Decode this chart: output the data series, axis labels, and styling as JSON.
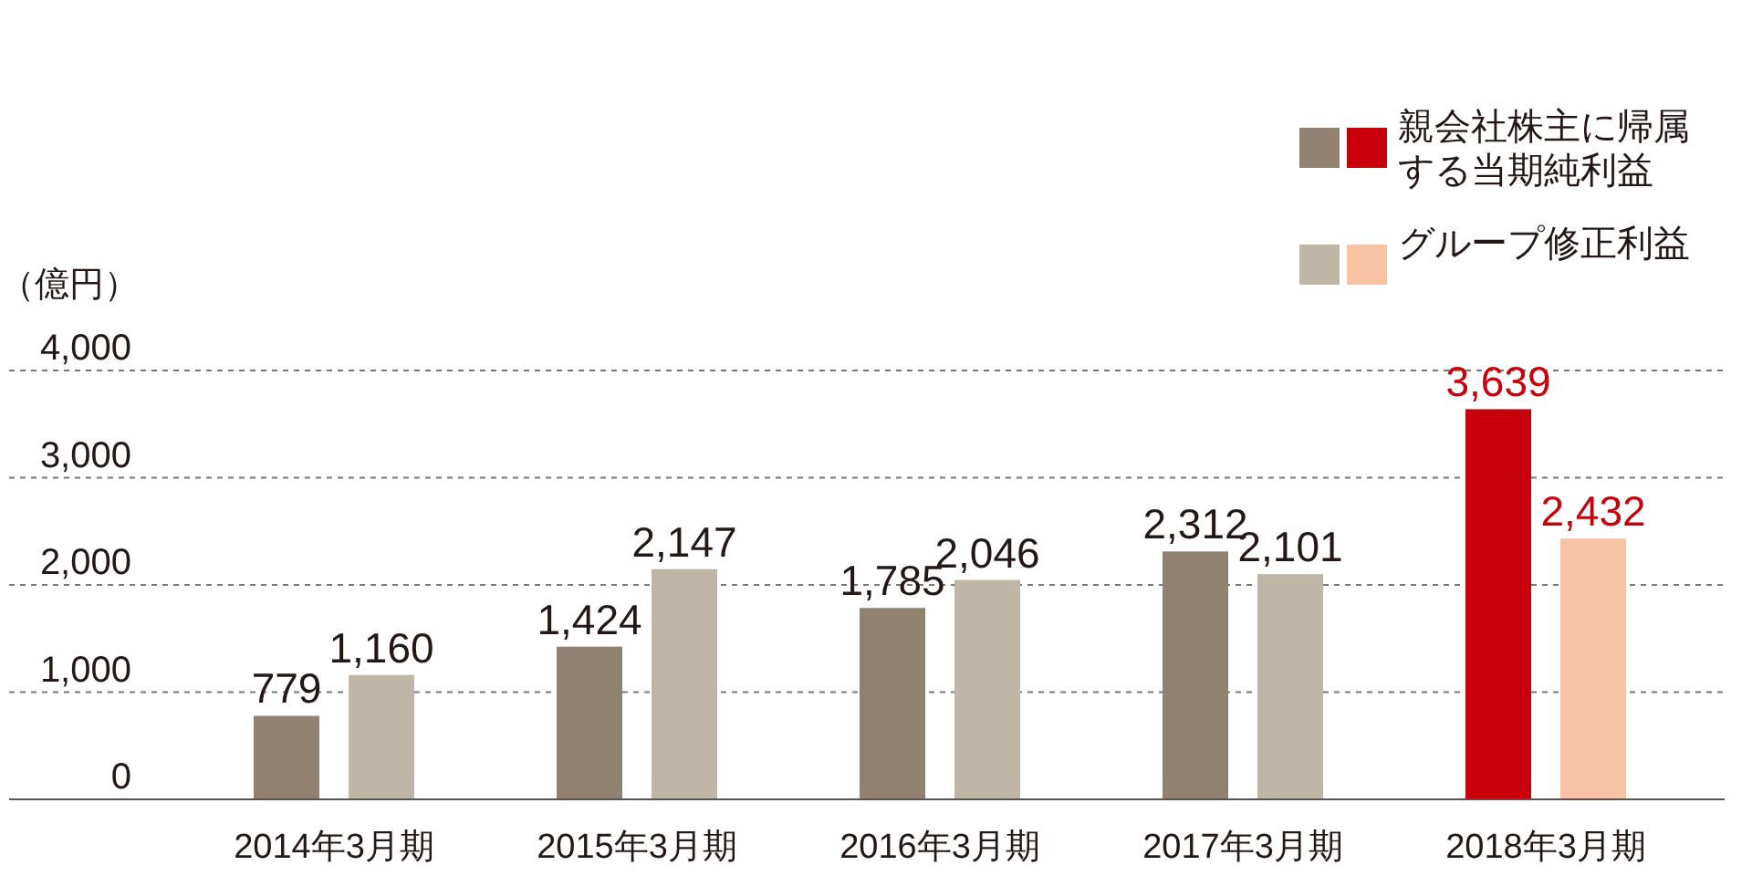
{
  "chart_data": {
    "type": "bar",
    "ylabel": "（億円）",
    "categories": [
      "2014年3月期",
      "2015年3月期",
      "2016年3月期",
      "2017年3月期",
      "2018年3月期"
    ],
    "series": [
      {
        "name": "親会社株主に帰属する当期純利益",
        "colors": [
          "#918170",
          "#918170",
          "#918170",
          "#918170",
          "#c8000b"
        ],
        "values": [
          779,
          1424,
          1785,
          2312,
          3639
        ],
        "value_labels": [
          "779",
          "1,424",
          "1,785",
          "2,312",
          "3,639"
        ]
      },
      {
        "name": "グループ修正利益",
        "colors": [
          "#bfb6a8",
          "#bfb6a8",
          "#bfb6a8",
          "#bfb6a8",
          "#f8c3a5"
        ],
        "values": [
          1160,
          2147,
          2046,
          2101,
          2432
        ],
        "value_labels": [
          "1,160",
          "2,147",
          "2,046",
          "2,101",
          "2,432"
        ]
      }
    ],
    "ylim": [
      0,
      4000
    ],
    "yticks": [
      {
        "value": 0,
        "label": "0"
      },
      {
        "value": 1000,
        "label": "1,000"
      },
      {
        "value": 2000,
        "label": "2,000"
      },
      {
        "value": 3000,
        "label": "3,000"
      },
      {
        "value": 4000,
        "label": "4,000"
      }
    ],
    "grid": "y",
    "legend": "top right"
  }
}
